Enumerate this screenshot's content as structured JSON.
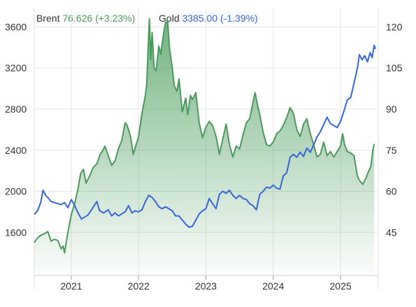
{
  "legend": {
    "brent_label": "Brent",
    "brent_value": "76.626 (+3.23%)",
    "gold_label": "Gold",
    "gold_value": "3385.00 (-1.39%)"
  },
  "colors": {
    "brent": "#4a9a5c",
    "brent_fill": "#5aa56a",
    "gold": "#3366dd",
    "grid": "#e6e6e6"
  },
  "chart_data": {
    "type": "line",
    "left_axis": {
      "series": "Gold",
      "ticks": [
        1600,
        2000,
        2400,
        2800,
        3200,
        3600
      ],
      "range": [
        1180,
        3780
      ]
    },
    "right_axis": {
      "series": "Brent",
      "ticks": [
        45,
        60,
        75,
        90,
        105,
        120
      ],
      "range": [
        29.25,
        126.75
      ]
    },
    "x_ticks": [
      "2021",
      "2022",
      "2023",
      "2024",
      "2025"
    ],
    "x_range": [
      2020.45,
      2025.56
    ],
    "grid": true,
    "series": [
      {
        "name": "Brent",
        "axis": "right",
        "area": true,
        "points": [
          [
            2020.45,
            41.3
          ],
          [
            2020.5,
            43
          ],
          [
            2020.55,
            44
          ],
          [
            2020.6,
            44.5
          ],
          [
            2020.65,
            45.3
          ],
          [
            2020.7,
            41.8
          ],
          [
            2020.75,
            42.5
          ],
          [
            2020.8,
            42
          ],
          [
            2020.85,
            39
          ],
          [
            2020.88,
            40
          ],
          [
            2020.9,
            37.5
          ],
          [
            2020.95,
            45
          ],
          [
            2021.0,
            51.5
          ],
          [
            2021.05,
            55.5
          ],
          [
            2021.1,
            61
          ],
          [
            2021.14,
            66.5
          ],
          [
            2021.18,
            68
          ],
          [
            2021.22,
            63
          ],
          [
            2021.27,
            65.5
          ],
          [
            2021.32,
            68.5
          ],
          [
            2021.38,
            70
          ],
          [
            2021.43,
            73.5
          ],
          [
            2021.47,
            75
          ],
          [
            2021.5,
            76.5
          ],
          [
            2021.55,
            73
          ],
          [
            2021.6,
            69.5
          ],
          [
            2021.65,
            71
          ],
          [
            2021.7,
            75.5
          ],
          [
            2021.75,
            78.5
          ],
          [
            2021.8,
            85
          ],
          [
            2021.83,
            84
          ],
          [
            2021.88,
            80
          ],
          [
            2021.92,
            73.5
          ],
          [
            2021.97,
            77.5
          ],
          [
            2022.0,
            80
          ],
          [
            2022.05,
            88.5
          ],
          [
            2022.1,
            95
          ],
          [
            2022.12,
            99
          ],
          [
            2022.14,
            111
          ],
          [
            2022.16,
            123
          ],
          [
            2022.18,
            108
          ],
          [
            2022.2,
            118
          ],
          [
            2022.23,
            105
          ],
          [
            2022.26,
            104
          ],
          [
            2022.3,
            113
          ],
          [
            2022.33,
            110
          ],
          [
            2022.37,
            117.5
          ],
          [
            2022.4,
            121.5
          ],
          [
            2022.43,
            122.5
          ],
          [
            2022.46,
            112
          ],
          [
            2022.5,
            105
          ],
          [
            2022.53,
            98.5
          ],
          [
            2022.57,
            96.5
          ],
          [
            2022.6,
            101
          ],
          [
            2022.65,
            89
          ],
          [
            2022.7,
            94
          ],
          [
            2022.73,
            88
          ],
          [
            2022.77,
            95
          ],
          [
            2022.8,
            93.5
          ],
          [
            2022.85,
            96
          ],
          [
            2022.9,
            85
          ],
          [
            2022.95,
            79.5
          ],
          [
            2023.0,
            83.5
          ],
          [
            2023.05,
            85.5
          ],
          [
            2023.1,
            84
          ],
          [
            2023.15,
            80
          ],
          [
            2023.2,
            73.5
          ],
          [
            2023.25,
            79
          ],
          [
            2023.3,
            84.5
          ],
          [
            2023.35,
            77
          ],
          [
            2023.4,
            72.5
          ],
          [
            2023.45,
            76.5
          ],
          [
            2023.5,
            75.5
          ],
          [
            2023.55,
            80.5
          ],
          [
            2023.6,
            85
          ],
          [
            2023.65,
            86.5
          ],
          [
            2023.7,
            92.5
          ],
          [
            2023.73,
            96
          ],
          [
            2023.77,
            91
          ],
          [
            2023.8,
            88
          ],
          [
            2023.85,
            81.5
          ],
          [
            2023.9,
            77
          ],
          [
            2023.95,
            76.5
          ],
          [
            2024.0,
            78
          ],
          [
            2024.05,
            81
          ],
          [
            2024.1,
            82
          ],
          [
            2024.15,
            84
          ],
          [
            2024.2,
            87
          ],
          [
            2024.25,
            90.5
          ],
          [
            2024.3,
            88.5
          ],
          [
            2024.35,
            82.5
          ],
          [
            2024.4,
            80
          ],
          [
            2024.45,
            84.5
          ],
          [
            2024.5,
            86.5
          ],
          [
            2024.55,
            81
          ],
          [
            2024.6,
            77
          ],
          [
            2024.65,
            72.5
          ],
          [
            2024.7,
            73.5
          ],
          [
            2024.75,
            78
          ],
          [
            2024.8,
            73
          ],
          [
            2024.85,
            74.5
          ],
          [
            2024.9,
            72.5
          ],
          [
            2024.95,
            74.5
          ],
          [
            2025.0,
            76.5
          ],
          [
            2025.03,
            81
          ],
          [
            2025.06,
            77
          ],
          [
            2025.1,
            74.5
          ],
          [
            2025.15,
            74
          ],
          [
            2025.2,
            73
          ],
          [
            2025.25,
            65.5
          ],
          [
            2025.28,
            64
          ],
          [
            2025.33,
            62.5
          ],
          [
            2025.38,
            65
          ],
          [
            2025.42,
            67.5
          ],
          [
            2025.45,
            69
          ],
          [
            2025.48,
            75
          ],
          [
            2025.5,
            77.3
          ]
        ]
      },
      {
        "name": "Gold",
        "axis": "left",
        "area": false,
        "points": [
          [
            2020.45,
            1775
          ],
          [
            2020.5,
            1810
          ],
          [
            2020.55,
            1900
          ],
          [
            2020.58,
            2010
          ],
          [
            2020.62,
            1960
          ],
          [
            2020.65,
            1940
          ],
          [
            2020.7,
            1900
          ],
          [
            2020.75,
            1890
          ],
          [
            2020.8,
            1880
          ],
          [
            2020.85,
            1870
          ],
          [
            2020.9,
            1890
          ],
          [
            2020.95,
            1840
          ],
          [
            2021.0,
            1920
          ],
          [
            2021.05,
            1860
          ],
          [
            2021.1,
            1790
          ],
          [
            2021.15,
            1730
          ],
          [
            2021.2,
            1750
          ],
          [
            2021.25,
            1770
          ],
          [
            2021.3,
            1820
          ],
          [
            2021.35,
            1870
          ],
          [
            2021.38,
            1900
          ],
          [
            2021.42,
            1810
          ],
          [
            2021.48,
            1790
          ],
          [
            2021.55,
            1820
          ],
          [
            2021.6,
            1760
          ],
          [
            2021.65,
            1790
          ],
          [
            2021.7,
            1760
          ],
          [
            2021.75,
            1780
          ],
          [
            2021.8,
            1800
          ],
          [
            2021.85,
            1860
          ],
          [
            2021.9,
            1790
          ],
          [
            2021.95,
            1810
          ],
          [
            2022.0,
            1800
          ],
          [
            2022.05,
            1820
          ],
          [
            2022.1,
            1900
          ],
          [
            2022.15,
            1960
          ],
          [
            2022.2,
            1940
          ],
          [
            2022.25,
            1900
          ],
          [
            2022.3,
            1850
          ],
          [
            2022.35,
            1830
          ],
          [
            2022.4,
            1850
          ],
          [
            2022.45,
            1830
          ],
          [
            2022.5,
            1810
          ],
          [
            2022.55,
            1760
          ],
          [
            2022.6,
            1760
          ],
          [
            2022.65,
            1720
          ],
          [
            2022.7,
            1680
          ],
          [
            2022.75,
            1650
          ],
          [
            2022.8,
            1660
          ],
          [
            2022.85,
            1720
          ],
          [
            2022.9,
            1780
          ],
          [
            2022.95,
            1810
          ],
          [
            2023.0,
            1830
          ],
          [
            2023.05,
            1930
          ],
          [
            2023.1,
            1880
          ],
          [
            2023.15,
            1830
          ],
          [
            2023.2,
            1970
          ],
          [
            2023.25,
            2000
          ],
          [
            2023.3,
            1980
          ],
          [
            2023.35,
            2010
          ],
          [
            2023.4,
            1960
          ],
          [
            2023.45,
            1930
          ],
          [
            2023.5,
            1960
          ],
          [
            2023.55,
            1930
          ],
          [
            2023.6,
            1920
          ],
          [
            2023.65,
            1880
          ],
          [
            2023.7,
            1860
          ],
          [
            2023.75,
            1820
          ],
          [
            2023.8,
            1970
          ],
          [
            2023.85,
            2000
          ],
          [
            2023.9,
            2040
          ],
          [
            2023.95,
            2030
          ],
          [
            2024.0,
            2060
          ],
          [
            2024.05,
            2030
          ],
          [
            2024.1,
            2020
          ],
          [
            2024.15,
            2150
          ],
          [
            2024.2,
            2180
          ],
          [
            2024.25,
            2330
          ],
          [
            2024.3,
            2360
          ],
          [
            2024.35,
            2330
          ],
          [
            2024.4,
            2380
          ],
          [
            2024.45,
            2340
          ],
          [
            2024.5,
            2420
          ],
          [
            2024.55,
            2380
          ],
          [
            2024.6,
            2450
          ],
          [
            2024.65,
            2530
          ],
          [
            2024.7,
            2580
          ],
          [
            2024.75,
            2650
          ],
          [
            2024.8,
            2720
          ],
          [
            2024.85,
            2660
          ],
          [
            2024.9,
            2640
          ],
          [
            2024.95,
            2620
          ],
          [
            2025.0,
            2680
          ],
          [
            2025.05,
            2780
          ],
          [
            2025.1,
            2890
          ],
          [
            2025.15,
            2910
          ],
          [
            2025.2,
            3050
          ],
          [
            2025.25,
            3200
          ],
          [
            2025.28,
            3330
          ],
          [
            2025.32,
            3280
          ],
          [
            2025.36,
            3320
          ],
          [
            2025.4,
            3260
          ],
          [
            2025.44,
            3350
          ],
          [
            2025.47,
            3300
          ],
          [
            2025.5,
            3420
          ],
          [
            2025.52,
            3385
          ]
        ]
      }
    ]
  }
}
